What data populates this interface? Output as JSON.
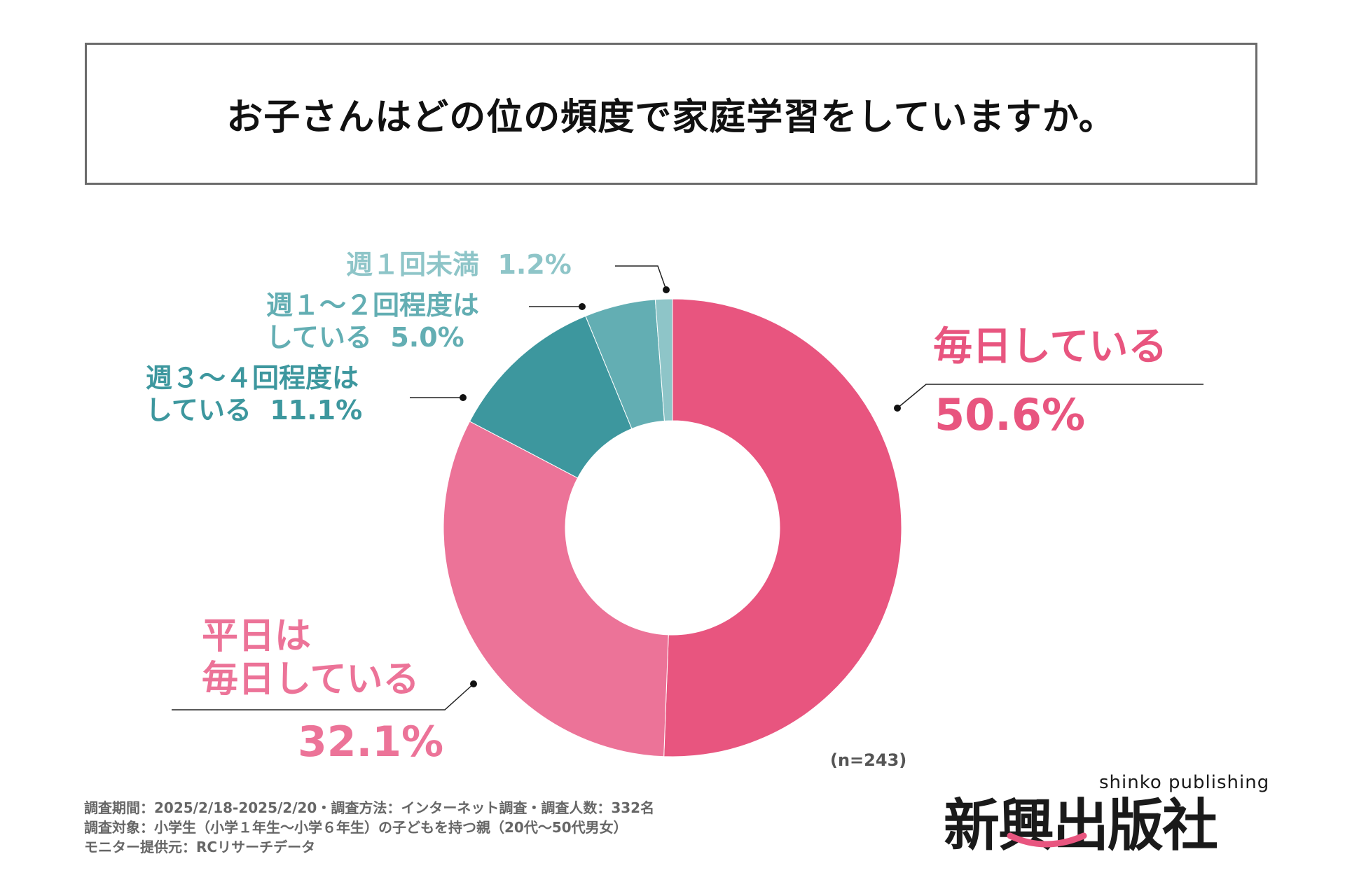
{
  "title": "お子さんはどの位の頻度で家庭学習をしていますか。",
  "chart_data": {
    "type": "pie",
    "subtype": "donut",
    "title": "お子さんはどの位の頻度で家庭学習をしていますか。",
    "start": "top, clockwise",
    "slices": [
      {
        "label_lines": [
          "毎日している"
        ],
        "label": "毎日している",
        "value": 50.6,
        "value_label": "50.6%",
        "color": "#e8557f"
      },
      {
        "label_lines": [
          "平日は",
          "毎日している"
        ],
        "label": "平日は毎日している",
        "value": 32.1,
        "value_label": "32.1%",
        "color": "#ec7398"
      },
      {
        "label_lines": [
          "週３～４回程度は",
          "している"
        ],
        "label": "週３～４回程度はしている",
        "value": 11.1,
        "value_label": "11.1%",
        "color": "#3d979e"
      },
      {
        "label_lines": [
          "週１～２回程度は",
          "している"
        ],
        "label": "週１～２回程度はしている",
        "value": 5.0,
        "value_label": "5.0%",
        "color": "#63aeb3"
      },
      {
        "label_lines": [
          "週１回未満"
        ],
        "label": "週１回未満",
        "value": 1.2,
        "value_label": "1.2%",
        "color": "#8ec5c8"
      }
    ],
    "sample": "(n=243)"
  },
  "footer": [
    "調査期間：2025/2/18-2025/2/20・調査方法：インターネット調査・調査人数：332名",
    "調査対象：小学生（小学１年生～小学６年生）の子どもを持つ親（20代～50代男女）",
    "モニター提供元：RCリサーチデータ"
  ],
  "logo": {
    "en": "shinko publishing",
    "jp": "新興出版社",
    "accent": "#e8557f"
  }
}
